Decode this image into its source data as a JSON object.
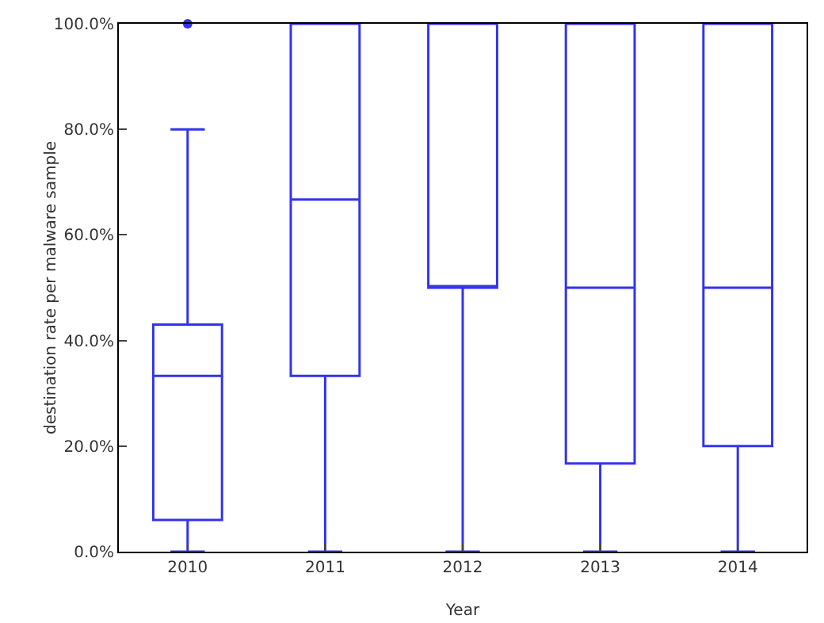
{
  "chart_data": {
    "type": "box",
    "xlabel": "Year",
    "ylabel": "destination rate per malware sample",
    "categories": [
      "2010",
      "2011",
      "2012",
      "2013",
      "2014"
    ],
    "color": "#3333ee",
    "boxes": [
      {
        "low": 0,
        "q1": 6,
        "median": 33.3,
        "q3": 43,
        "high": 80,
        "outliers": [
          100
        ]
      },
      {
        "low": 0,
        "q1": 33.3,
        "median": 66.7,
        "q3": 100,
        "high": 100
      },
      {
        "low": 0,
        "q1": 50,
        "median": 50,
        "q3": 100,
        "high": 100
      },
      {
        "low": 0,
        "q1": 16.7,
        "median": 50,
        "q3": 100,
        "high": 100
      },
      {
        "low": 0,
        "q1": 20,
        "median": 50,
        "q3": 100,
        "high": 100
      }
    ],
    "ylim": [
      0,
      100
    ],
    "yticks": [
      {
        "value": 0,
        "label": "0.0%"
      },
      {
        "value": 20,
        "label": "20.0%"
      },
      {
        "value": 40,
        "label": "40.0%"
      },
      {
        "value": 60,
        "label": "60.0%"
      },
      {
        "value": 80,
        "label": "80.0%"
      },
      {
        "value": 100,
        "label": "100.0%"
      }
    ],
    "tick_labels": "xy"
  }
}
